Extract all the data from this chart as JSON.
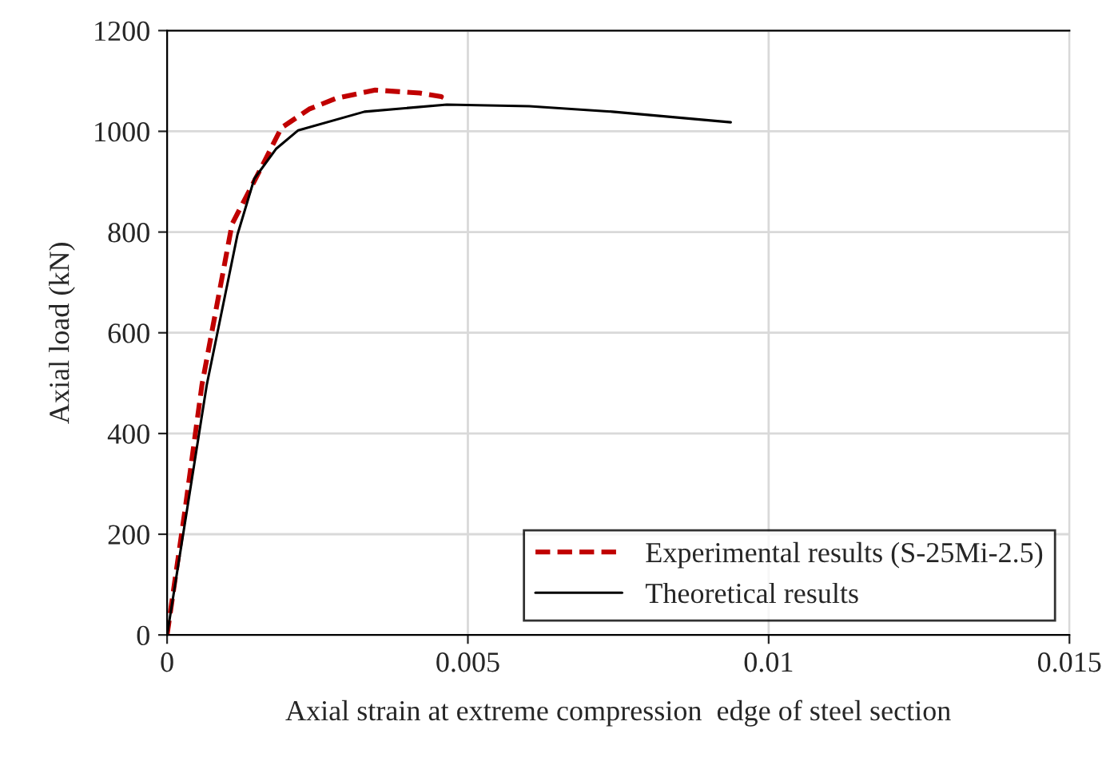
{
  "chart_data": {
    "type": "line",
    "xlabel": "Axial strain at extreme compression  edge of steel section",
    "ylabel": "Axial load (kN)",
    "series": [
      {
        "name": "Experimental results (S-25Mi-2.5)",
        "color": "#c00000",
        "line_style": "dashed",
        "x": [
          0,
          0.0003,
          0.00058,
          0.00108,
          0.00154,
          0.0019,
          0.00236,
          0.00282,
          0.00346,
          0.0042,
          0.00456,
          0.00452
        ],
        "values": [
          0,
          250,
          497,
          816,
          922,
          1007,
          1044,
          1066,
          1082,
          1076,
          1069,
          1062
        ]
      },
      {
        "name": "Theoretical results",
        "color": "#000000",
        "line_style": "solid",
        "x": [
          0,
          0.0003,
          0.00066,
          0.00117,
          0.00145,
          0.00181,
          0.00218,
          0.00328,
          0.00465,
          0.00602,
          0.0074,
          0.00937
        ],
        "values": [
          0,
          225,
          497,
          795,
          906,
          965,
          1002,
          1039,
          1053,
          1050,
          1039,
          1018
        ]
      }
    ],
    "xlim": [
      0,
      0.015
    ],
    "xticks": [
      0,
      0.005,
      0.01,
      0.015
    ],
    "ylim": [
      0,
      1200
    ],
    "yticks": [
      0,
      200,
      400,
      600,
      800,
      1000,
      1200
    ],
    "grid": true,
    "legend": "lower right",
    "marker": "none"
  }
}
